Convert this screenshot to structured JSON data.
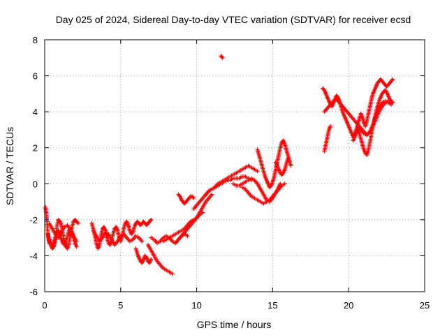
{
  "chart_data": {
    "type": "scatter",
    "title": "Day 025 of 2024, Sidereal Day-to-day VTEC variation (SDTVAR) for receiver ecsd",
    "xlabel": "GPS time / hours",
    "ylabel": "SDTVAR / TECUs",
    "xlim": [
      0,
      25
    ],
    "ylim": [
      -6,
      8
    ],
    "xticks": [
      "0",
      "5",
      "10",
      "15",
      "20",
      "25"
    ],
    "yticks": [
      "-6",
      "-4",
      "-2",
      "0",
      "2",
      "4",
      "6",
      "8"
    ],
    "grid": true,
    "marker": "plus",
    "color": "#ff0000",
    "series": [
      {
        "x": [
          0.05,
          0.1,
          0.15,
          0.2,
          0.25,
          0.3,
          0.35,
          0.4,
          0.5,
          0.6,
          0.7,
          0.8,
          0.9,
          1.0,
          1.1,
          1.2,
          1.3,
          1.4,
          1.5,
          1.6,
          1.7,
          1.8,
          1.9,
          2.0,
          2.1,
          2.2,
          0.2,
          0.3,
          0.4,
          0.5,
          0.6,
          0.7,
          0.8,
          0.9,
          1.0,
          1.1,
          1.2,
          1.3,
          1.4,
          1.5,
          1.6,
          1.7,
          1.8,
          1.9,
          2.0,
          2.1,
          0.3,
          0.5,
          0.7,
          0.9,
          1.1,
          1.3,
          1.5,
          1.7,
          1.9,
          2.1,
          3.1,
          3.2,
          3.3,
          3.4,
          3.5,
          3.6,
          3.7,
          3.8,
          3.9,
          4.0,
          4.1,
          4.2,
          4.3,
          4.4,
          4.5,
          4.6,
          4.7,
          4.8,
          4.9,
          5.0,
          5.1,
          5.2,
          5.3,
          5.4,
          5.5,
          5.6,
          5.7,
          5.8,
          5.9,
          6.0,
          6.1,
          6.2,
          6.3,
          6.4,
          6.5,
          6.6,
          6.7,
          6.8,
          6.9,
          7.0,
          3.2,
          3.4,
          3.6,
          3.8,
          4.0,
          4.2,
          4.4,
          4.6,
          4.8,
          5.0,
          5.2,
          5.4,
          5.6,
          5.8,
          6.0,
          6.2,
          6.4,
          6.0,
          6.1,
          6.2,
          6.3,
          6.4,
          6.5,
          6.6,
          6.7,
          6.8,
          6.9,
          7.0,
          6.8,
          7.0,
          7.2,
          7.4,
          7.6,
          7.8,
          8.0,
          8.2,
          8.4,
          7.0,
          7.2,
          7.4,
          7.6,
          7.8,
          8.0,
          8.2,
          8.4,
          8.6,
          8.8,
          9.0,
          9.2,
          9.4,
          7.8,
          8.0,
          8.2,
          8.4,
          8.6,
          8.8,
          9.0,
          9.2,
          9.4,
          9.6,
          9.8,
          10.0,
          10.2,
          10.4,
          8.6,
          8.8,
          9.0,
          9.2,
          9.4,
          9.6,
          9.8,
          10.0,
          10.2,
          10.4,
          10.6,
          10.8,
          11.0,
          8.8,
          8.9,
          9.0,
          9.1,
          9.2,
          9.3,
          9.4,
          9.5,
          9.6,
          9.7,
          9.8,
          9.8,
          10.0,
          10.2,
          10.4,
          10.6,
          10.8,
          11.0,
          11.2,
          11.4,
          11.6,
          11.8,
          12.0,
          12.2,
          12.4,
          12.6,
          12.8,
          13.0,
          13.2,
          13.4,
          13.6,
          13.8,
          14.0,
          10.6,
          10.8,
          11.0,
          11.2,
          11.4,
          11.6,
          11.8,
          12.0,
          12.2,
          12.4,
          12.6,
          12.8,
          13.0,
          13.2,
          13.4,
          13.6,
          11.6,
          11.7,
          12.4,
          12.6,
          12.8,
          13.0,
          13.2,
          13.4,
          13.6,
          13.8,
          14.0,
          14.2,
          14.4,
          14.6,
          14.8,
          15.0,
          15.2,
          15.4,
          15.5,
          13.0,
          13.2,
          13.4,
          13.6,
          13.8,
          14.0,
          14.2,
          14.4,
          14.6,
          14.8,
          15.0,
          15.2,
          15.4,
          15.6,
          15.8,
          14.0,
          14.1,
          14.2,
          14.3,
          14.4,
          14.5,
          14.6,
          14.7,
          14.8,
          14.9,
          15.0,
          15.1,
          15.2,
          15.3,
          15.4,
          15.5,
          15.6,
          15.7,
          15.8,
          15.9,
          16.0,
          16.1,
          16.2,
          15.2,
          15.3,
          15.4,
          15.5,
          15.6,
          15.7,
          15.8,
          15.9,
          16.0,
          18.3,
          18.4,
          18.5,
          18.6,
          18.7,
          18.8,
          18.9,
          19.0,
          19.1,
          19.2,
          19.3,
          19.4,
          19.5,
          19.6,
          19.7,
          19.8,
          19.9,
          20.0,
          20.1,
          20.2,
          20.3,
          20.4,
          20.5,
          20.6,
          20.7,
          20.8,
          20.9,
          21.0,
          21.1,
          21.2,
          21.3,
          21.4,
          21.5,
          21.6,
          21.7,
          21.8,
          21.9,
          22.0,
          22.1,
          22.2,
          22.3,
          22.4,
          22.5,
          22.6,
          22.7,
          22.8,
          22.9,
          18.4,
          18.6,
          18.8,
          19.0,
          19.2,
          19.4,
          19.6,
          19.8,
          20.0,
          20.2,
          20.4,
          20.6,
          20.8,
          21.0,
          21.2,
          21.4,
          21.6,
          21.8,
          22.0,
          22.2,
          22.4,
          22.6,
          22.8,
          18.4,
          18.5,
          18.6,
          18.7,
          18.8,
          20.3,
          20.4,
          20.5,
          20.6,
          20.7,
          20.8,
          20.9,
          21.0,
          21.1,
          21.2,
          21.3,
          21.4,
          21.5,
          21.6,
          21.7,
          21.8,
          21.9,
          22.0,
          22.1,
          22.2,
          22.3,
          22.4,
          22.5,
          22.6,
          22.7,
          22.8,
          22.9,
          20.6,
          20.8,
          21.0,
          21.2,
          21.4,
          21.6,
          21.8,
          22.0,
          22.2,
          22.4,
          22.6,
          22.8
        ],
        "y": [
          -1.3,
          -1.6,
          -2.1,
          -2.6,
          -3.0,
          -3.3,
          -3.1,
          -3.4,
          -3.6,
          -3.5,
          -3.2,
          -2.4,
          -2.0,
          -2.1,
          -2.3,
          -2.8,
          -3.2,
          -3.5,
          -3.6,
          -3.3,
          -2.8,
          -2.4,
          -2.1,
          -2.0,
          -2.1,
          -2.2,
          -2.8,
          -3.2,
          -3.4,
          -3.5,
          -3.3,
          -3.0,
          -2.7,
          -2.6,
          -2.8,
          -3.1,
          -3.3,
          -3.4,
          -3.2,
          -2.9,
          -2.6,
          -2.5,
          -2.7,
          -3.0,
          -3.3,
          -3.5,
          -2.2,
          -2.5,
          -2.8,
          -3.0,
          -2.7,
          -2.4,
          -2.3,
          -2.6,
          -2.9,
          -3.2,
          -2.2,
          -2.5,
          -2.9,
          -3.3,
          -3.6,
          -3.4,
          -2.9,
          -2.5,
          -2.4,
          -2.6,
          -3.0,
          -3.3,
          -3.4,
          -3.2,
          -2.8,
          -2.5,
          -2.4,
          -2.6,
          -3.0,
          -3.2,
          -2.9,
          -2.5,
          -2.2,
          -2.1,
          -2.3,
          -2.6,
          -2.8,
          -2.7,
          -2.4,
          -2.2,
          -2.1,
          -2.2,
          -2.3,
          -2.2,
          -2.1,
          -2.2,
          -2.3,
          -2.2,
          -2.1,
          -2.0,
          -2.6,
          -2.9,
          -3.2,
          -3.0,
          -2.7,
          -2.8,
          -3.1,
          -3.4,
          -3.2,
          -2.9,
          -2.8,
          -3.0,
          -3.2,
          -3.1,
          -2.9,
          -3.0,
          -3.2,
          -3.6,
          -3.9,
          -4.1,
          -4.3,
          -4.4,
          -4.2,
          -4.0,
          -4.1,
          -4.3,
          -4.4,
          -4.2,
          -3.4,
          -3.7,
          -4.0,
          -4.3,
          -4.5,
          -4.7,
          -4.8,
          -4.9,
          -5.0,
          -3.0,
          -3.1,
          -3.3,
          -3.2,
          -3.0,
          -2.9,
          -3.0,
          -3.2,
          -3.3,
          -3.1,
          -2.9,
          -2.8,
          -2.9,
          -3.2,
          -3.1,
          -3.0,
          -2.9,
          -2.8,
          -2.7,
          -2.6,
          -2.5,
          -2.3,
          -2.1,
          -2.0,
          -1.9,
          -1.7,
          -1.6,
          -3.3,
          -3.1,
          -2.9,
          -2.7,
          -2.5,
          -2.3,
          -2.1,
          -1.9,
          -1.6,
          -1.3,
          -1.0,
          -0.8,
          -0.6,
          -0.6,
          -0.7,
          -0.9,
          -1.0,
          -1.1,
          -1.0,
          -0.9,
          -0.8,
          -0.7,
          -0.7,
          -0.8,
          -1.4,
          -1.2,
          -1.0,
          -0.8,
          -0.6,
          -0.4,
          -0.3,
          -0.2,
          0.0,
          0.1,
          0.2,
          0.3,
          0.4,
          0.5,
          0.6,
          0.7,
          0.8,
          0.9,
          1.0,
          0.9,
          0.8,
          0.7,
          -0.6,
          -0.4,
          -0.3,
          -0.2,
          -0.1,
          0.0,
          0.1,
          0.2,
          0.2,
          0.3,
          0.3,
          0.3,
          0.4,
          0.4,
          0.3,
          0.2,
          7.1,
          7.0,
          0.0,
          -0.1,
          -0.1,
          0.0,
          0.1,
          0.2,
          0.3,
          0.2,
          0.0,
          -0.3,
          -0.6,
          -0.9,
          -1.0,
          -0.8,
          -0.5,
          -0.2,
          0.0,
          -0.2,
          -0.3,
          -0.5,
          -0.7,
          -0.8,
          -0.9,
          -1.0,
          -1.1,
          -1.0,
          -0.9,
          -0.7,
          -0.5,
          -0.3,
          -0.1,
          0.0,
          1.9,
          1.6,
          1.3,
          1.0,
          0.7,
          0.4,
          0.2,
          0.0,
          -0.2,
          -0.1,
          0.1,
          0.4,
          0.8,
          1.2,
          1.6,
          2.0,
          2.3,
          2.4,
          2.2,
          1.9,
          1.6,
          1.3,
          1.0,
          1.2,
          1.0,
          0.8,
          0.6,
          0.5,
          0.6,
          0.8,
          1.1,
          1.4,
          5.3,
          5.2,
          5.0,
          4.8,
          4.6,
          4.4,
          4.3,
          4.5,
          4.7,
          4.9,
          4.8,
          4.6,
          4.3,
          4.0,
          3.8,
          3.6,
          3.4,
          3.2,
          3.0,
          2.8,
          2.6,
          2.8,
          3.0,
          3.3,
          3.6,
          3.9,
          3.7,
          3.4,
          3.2,
          3.5,
          3.9,
          4.3,
          4.7,
          5.0,
          5.2,
          5.4,
          5.6,
          5.7,
          5.8,
          5.7,
          5.6,
          5.5,
          5.4,
          5.5,
          5.6,
          5.7,
          5.8,
          4.0,
          4.2,
          4.4,
          4.6,
          4.7,
          4.5,
          4.3,
          4.1,
          3.9,
          3.7,
          3.5,
          3.3,
          3.1,
          2.9,
          2.7,
          2.9,
          3.2,
          3.6,
          4.0,
          4.3,
          4.5,
          4.6,
          4.5,
          1.8,
          2.2,
          2.6,
          3.0,
          3.2,
          2.4,
          2.6,
          2.8,
          3.0,
          2.8,
          2.5,
          2.2,
          1.9,
          1.7,
          1.6,
          1.9,
          2.3,
          2.7,
          3.2,
          3.6,
          4.0,
          4.3,
          4.6,
          4.8,
          5.0,
          5.1,
          5.2,
          5.1,
          4.9,
          4.7,
          4.6,
          4.5,
          3.2,
          3.0,
          2.8,
          2.7,
          2.9,
          3.3,
          3.8,
          4.2,
          4.5,
          4.6,
          4.5,
          4.4
        ]
      }
    ]
  }
}
